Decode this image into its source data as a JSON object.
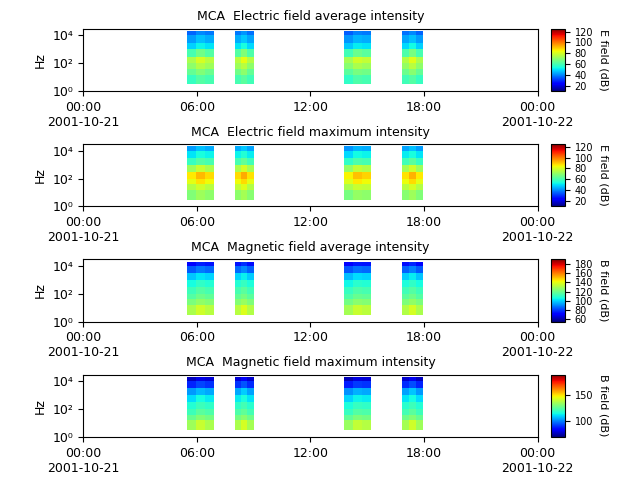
{
  "chart_data": [
    {
      "type": "heatmap",
      "title": "MCA  Electric field average intensity",
      "y_label": "Hz",
      "xlim": [
        0,
        24
      ],
      "xticks": [
        {
          "value": 0,
          "label": "00:00\n2001-10-21"
        },
        {
          "value": 6,
          "label": "06:00"
        },
        {
          "value": 12,
          "label": "12:00"
        },
        {
          "value": 18,
          "label": "18:00"
        },
        {
          "value": 24,
          "label": "00:00\n2001-10-22"
        }
      ],
      "ylim": [
        1,
        30000
      ],
      "log": "y",
      "yticks": [
        {
          "value": 1,
          "label": "10⁰"
        },
        {
          "value": 100,
          "label": "10²"
        },
        {
          "value": 10000,
          "label": "10⁴"
        }
      ],
      "x_edges": [
        5.5,
        5.97,
        6.43,
        6.9,
        8.0,
        8.33,
        8.67,
        9.0,
        13.8,
        14.27,
        14.73,
        15.2,
        16.85,
        17.22,
        17.58,
        17.95
      ],
      "y_edges": [
        3,
        15,
        40,
        100,
        300,
        1000,
        3000,
        10000,
        20000
      ],
      "cells": [
        [
          58,
          62,
          60,
          null,
          60,
          63,
          59,
          null,
          57,
          61,
          60,
          null,
          59,
          62,
          58
        ],
        [
          64,
          68,
          65,
          null,
          66,
          70,
          64,
          null,
          63,
          67,
          66,
          null,
          65,
          69,
          64
        ],
        [
          70,
          75,
          72,
          null,
          72,
          76,
          70,
          null,
          69,
          74,
          72,
          null,
          71,
          76,
          70
        ],
        [
          74,
          80,
          76,
          null,
          76,
          82,
          75,
          null,
          73,
          79,
          77,
          null,
          75,
          81,
          74
        ],
        [
          60,
          66,
          62,
          null,
          62,
          68,
          61,
          null,
          59,
          65,
          63,
          null,
          61,
          67,
          60
        ],
        [
          48,
          52,
          50,
          null,
          50,
          54,
          49,
          null,
          47,
          51,
          50,
          null,
          49,
          53,
          48
        ],
        [
          42,
          46,
          44,
          null,
          44,
          47,
          43,
          null,
          41,
          45,
          44,
          null,
          43,
          46,
          42
        ],
        [
          36,
          40,
          38,
          null,
          38,
          41,
          37,
          null,
          35,
          39,
          38,
          null,
          37,
          40,
          36
        ]
      ],
      "colorbar_label": "E field (dB)",
      "colorbar_range": [
        10,
        125
      ],
      "colorbar_ticks": [
        20,
        40,
        60,
        80,
        100,
        120
      ]
    },
    {
      "type": "heatmap",
      "title": "MCA  Electric field maximum intensity",
      "y_label": "Hz",
      "xlim": [
        0,
        24
      ],
      "xticks": [
        {
          "value": 0,
          "label": "00:00\n2001-10-21"
        },
        {
          "value": 6,
          "label": "06:00"
        },
        {
          "value": 12,
          "label": "12:00"
        },
        {
          "value": 18,
          "label": "18:00"
        },
        {
          "value": 24,
          "label": "00:00\n2001-10-22"
        }
      ],
      "ylim": [
        1,
        30000
      ],
      "log": "y",
      "yticks": [
        {
          "value": 1,
          "label": "10⁰"
        },
        {
          "value": 100,
          "label": "10²"
        },
        {
          "value": 10000,
          "label": "10⁴"
        }
      ],
      "x_edges": [
        5.5,
        5.97,
        6.43,
        6.9,
        8.0,
        8.33,
        8.67,
        9.0,
        13.8,
        14.27,
        14.73,
        15.2,
        16.85,
        17.22,
        17.58,
        17.95
      ],
      "y_edges": [
        3,
        15,
        40,
        100,
        300,
        1000,
        3000,
        10000,
        20000
      ],
      "cells": [
        [
          68,
          72,
          70,
          null,
          70,
          73,
          69,
          null,
          67,
          71,
          70,
          null,
          69,
          72,
          68
        ],
        [
          75,
          79,
          76,
          null,
          77,
          81,
          75,
          null,
          74,
          78,
          77,
          null,
          76,
          80,
          75
        ],
        [
          82,
          87,
          84,
          null,
          84,
          88,
          82,
          null,
          81,
          86,
          84,
          null,
          83,
          88,
          82
        ],
        [
          86,
          92,
          88,
          null,
          88,
          94,
          87,
          null,
          85,
          91,
          89,
          null,
          87,
          93,
          86
        ],
        [
          72,
          78,
          74,
          null,
          74,
          80,
          73,
          null,
          71,
          77,
          75,
          null,
          73,
          79,
          72
        ],
        [
          58,
          62,
          60,
          null,
          60,
          64,
          59,
          null,
          57,
          61,
          60,
          null,
          59,
          63,
          58
        ],
        [
          50,
          54,
          52,
          null,
          52,
          55,
          51,
          null,
          49,
          53,
          52,
          null,
          51,
          54,
          50
        ],
        [
          42,
          46,
          44,
          null,
          44,
          47,
          43,
          null,
          41,
          45,
          44,
          null,
          43,
          46,
          42
        ]
      ],
      "colorbar_label": "E field (dB)",
      "colorbar_range": [
        10,
        125
      ],
      "colorbar_ticks": [
        20,
        40,
        60,
        80,
        100,
        120
      ]
    },
    {
      "type": "heatmap",
      "title": "MCA  Magnetic field average intensity",
      "y_label": "Hz",
      "xlim": [
        0,
        24
      ],
      "xticks": [
        {
          "value": 0,
          "label": "00:00\n2001-10-21"
        },
        {
          "value": 6,
          "label": "06:00"
        },
        {
          "value": 12,
          "label": "12:00"
        },
        {
          "value": 18,
          "label": "18:00"
        },
        {
          "value": 24,
          "label": "00:00\n2001-10-22"
        }
      ],
      "ylim": [
        1,
        30000
      ],
      "log": "y",
      "yticks": [
        {
          "value": 1,
          "label": "10⁰"
        },
        {
          "value": 100,
          "label": "10²"
        },
        {
          "value": 10000,
          "label": "10⁴"
        }
      ],
      "x_edges": [
        5.5,
        5.97,
        6.43,
        6.9,
        8.0,
        8.33,
        8.67,
        9.0,
        13.8,
        14.27,
        14.73,
        15.2,
        16.85,
        17.22,
        17.58,
        17.95
      ],
      "y_edges": [
        3,
        15,
        40,
        100,
        300,
        1000,
        3000,
        10000,
        20000
      ],
      "cells": [
        [
          130,
          136,
          132,
          null,
          132,
          138,
          131,
          null,
          129,
          135,
          133,
          null,
          131,
          137,
          130
        ],
        [
          122,
          126,
          124,
          null,
          124,
          127,
          123,
          null,
          121,
          125,
          124,
          null,
          123,
          126,
          122
        ],
        [
          116,
          120,
          118,
          null,
          118,
          121,
          117,
          null,
          115,
          119,
          118,
          null,
          117,
          120,
          116
        ],
        [
          112,
          116,
          114,
          null,
          114,
          117,
          113,
          null,
          111,
          115,
          114,
          null,
          113,
          116,
          112
        ],
        [
          106,
          110,
          108,
          null,
          108,
          111,
          107,
          null,
          105,
          109,
          108,
          null,
          107,
          110,
          106
        ],
        [
          98,
          102,
          100,
          null,
          100,
          104,
          99,
          null,
          97,
          101,
          100,
          null,
          99,
          103,
          98
        ],
        [
          84,
          88,
          86,
          null,
          86,
          90,
          85,
          null,
          83,
          87,
          86,
          null,
          85,
          89,
          84
        ],
        [
          72,
          76,
          74,
          null,
          74,
          78,
          73,
          null,
          71,
          75,
          74,
          null,
          73,
          77,
          72
        ]
      ],
      "colorbar_label": "B field (dB)",
      "colorbar_range": [
        55,
        190
      ],
      "colorbar_ticks": [
        60,
        80,
        100,
        120,
        140,
        160,
        180
      ]
    },
    {
      "type": "heatmap",
      "title": "MCA  Magnetic field maximum intensity",
      "y_label": "Hz",
      "xlim": [
        0,
        24
      ],
      "xticks": [
        {
          "value": 0,
          "label": "00:00\n2001-10-21"
        },
        {
          "value": 6,
          "label": "06:00"
        },
        {
          "value": 12,
          "label": "12:00"
        },
        {
          "value": 18,
          "label": "18:00"
        },
        {
          "value": 24,
          "label": "00:00\n2001-10-22"
        }
      ],
      "ylim": [
        1,
        30000
      ],
      "log": "y",
      "yticks": [
        {
          "value": 1,
          "label": "10⁰"
        },
        {
          "value": 100,
          "label": "10²"
        },
        {
          "value": 10000,
          "label": "10⁴"
        }
      ],
      "x_edges": [
        5.5,
        5.97,
        6.43,
        6.9,
        8.0,
        8.33,
        8.67,
        9.0,
        13.8,
        14.27,
        14.73,
        15.2,
        16.85,
        17.22,
        17.58,
        17.95
      ],
      "y_edges": [
        3,
        15,
        40,
        100,
        300,
        1000,
        3000,
        10000,
        20000
      ],
      "cells": [
        [
          135,
          141,
          137,
          null,
          137,
          143,
          136,
          null,
          134,
          140,
          138,
          null,
          136,
          142,
          135
        ],
        [
          127,
          131,
          129,
          null,
          129,
          132,
          128,
          null,
          126,
          130,
          129,
          null,
          128,
          131,
          127
        ],
        [
          121,
          125,
          123,
          null,
          123,
          126,
          122,
          null,
          120,
          124,
          123,
          null,
          122,
          125,
          121
        ],
        [
          117,
          121,
          119,
          null,
          119,
          122,
          118,
          null,
          116,
          120,
          119,
          null,
          118,
          121,
          117
        ],
        [
          111,
          115,
          113,
          null,
          113,
          116,
          112,
          null,
          110,
          114,
          113,
          null,
          112,
          115,
          111
        ],
        [
          103,
          107,
          105,
          null,
          105,
          109,
          104,
          null,
          102,
          106,
          105,
          null,
          104,
          108,
          103
        ],
        [
          89,
          93,
          91,
          null,
          91,
          95,
          90,
          null,
          88,
          92,
          91,
          null,
          90,
          94,
          89
        ],
        [
          77,
          81,
          79,
          null,
          79,
          83,
          78,
          null,
          76,
          80,
          79,
          null,
          78,
          82,
          77
        ]
      ],
      "colorbar_label": "B field (dB)",
      "colorbar_range": [
        70,
        190
      ],
      "colorbar_ticks": [
        100,
        150
      ]
    }
  ]
}
